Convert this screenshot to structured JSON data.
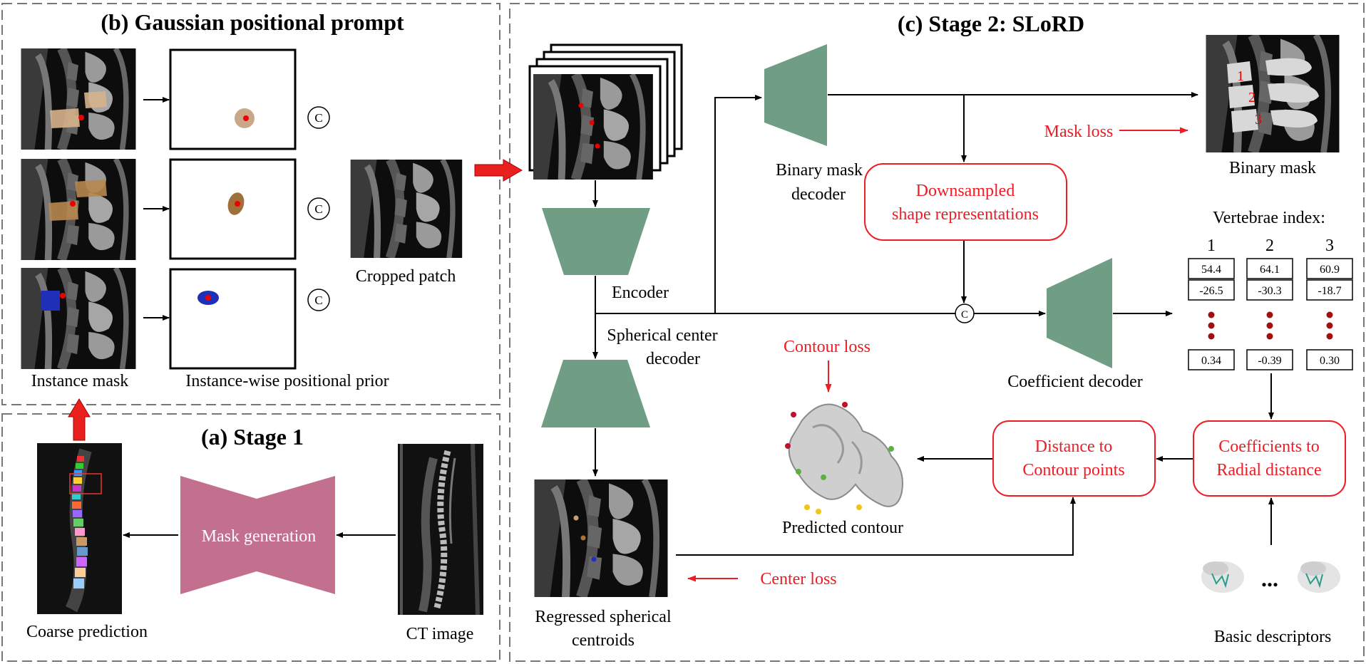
{
  "panels": {
    "b_title": "(b) Gaussian positional prompt",
    "a_title": "(a) Stage 1",
    "c_title": "(c) Stage 2: SLoRD"
  },
  "stage1": {
    "mask_generation": "Mask generation",
    "coarse_prediction": "Coarse prediction",
    "ct_image": "CT image"
  },
  "prompt": {
    "instance_mask": "Instance mask",
    "positional_prior": "Instance-wise positional prior",
    "cropped_patch": "Cropped patch",
    "concat_symbol": "C"
  },
  "stage2": {
    "encoder": "Encoder",
    "spherical_center_decoder_1": "Spherical center",
    "spherical_center_decoder_2": "decoder",
    "regressed_1": "Regressed spherical",
    "regressed_2": "centroids",
    "binary_mask_decoder_1": "Binary mask",
    "binary_mask_decoder_2": "decoder",
    "downsampled_1": "Downsampled",
    "downsampled_2": "shape representations",
    "binary_mask": "Binary mask",
    "mask_loss": "Mask loss",
    "vertebrae_index": "Vertebrae index:",
    "coefficient_decoder": "Coefficient decoder",
    "contour_loss": "Contour loss",
    "predicted_contour": "Predicted contour",
    "distance_1": "Distance to",
    "distance_2": "Contour points",
    "coef_1": "Coefficients to",
    "coef_2": "Radial distance",
    "center_loss": "Center loss",
    "basic_descriptors": "Basic descriptors",
    "ellipsis": "...",
    "mask_labels": [
      "1",
      "2",
      "3"
    ]
  },
  "vertebrae": [
    {
      "index": "1",
      "top": "54.4",
      "mid": "-26.5",
      "bottom": "0.34"
    },
    {
      "index": "2",
      "top": "64.1",
      "mid": "-30.3",
      "bottom": "-0.39"
    },
    {
      "index": "3",
      "top": "60.9",
      "mid": "-18.7",
      "bottom": "0.30"
    }
  ],
  "colors": {
    "decoder_green": "#6f9e85",
    "stage1_pink": "#c2708e",
    "loss_red": "#ee1c24",
    "arrow_red": "#e8211f",
    "mask_tan": "#d7b48c",
    "mask_brown": "#b8874e",
    "mask_blue": "#1f2fb8"
  }
}
